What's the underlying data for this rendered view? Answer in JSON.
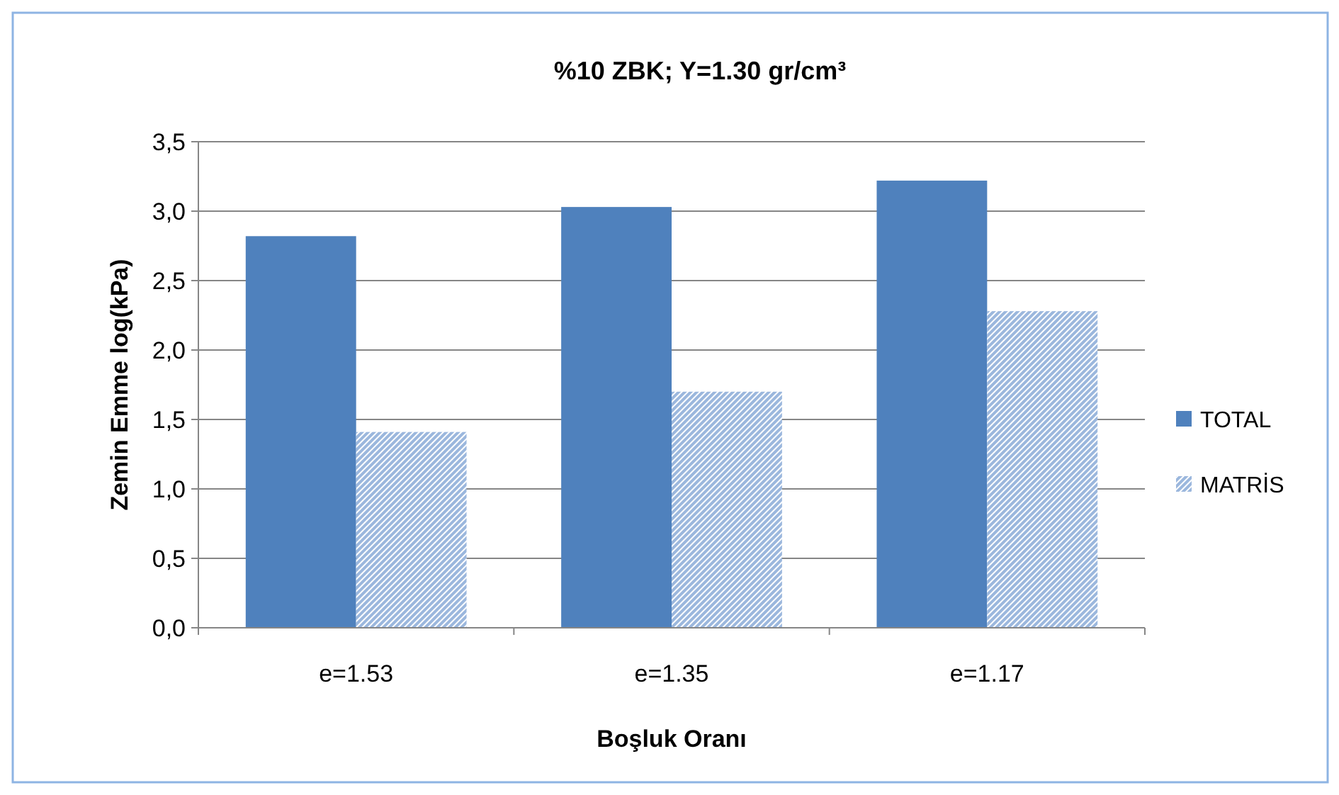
{
  "chart_data": {
    "type": "bar",
    "title": "%10 ZBK; Y=1.30 gr/cm³",
    "xlabel": "Boşluk Oranı",
    "ylabel": "Zemin Emme log(kPa)",
    "categories": [
      "e=1.53",
      "e=1.35",
      "e=1.17"
    ],
    "series": [
      {
        "name": "TOTAL",
        "color": "#4f81bd",
        "values": [
          2.82,
          3.03,
          3.22
        ]
      },
      {
        "name": "MATRİS",
        "color": "#9bb7dd",
        "values": [
          1.41,
          1.7,
          2.28
        ]
      }
    ],
    "ylim": [
      0,
      3.5
    ],
    "yticks": [
      {
        "value": 0,
        "label": "0,0"
      },
      {
        "value": 0.5,
        "label": "0,5"
      },
      {
        "value": 1,
        "label": "1,0"
      },
      {
        "value": 1.5,
        "label": "1,5"
      },
      {
        "value": 2,
        "label": "2,0"
      },
      {
        "value": 2.5,
        "label": "2,5"
      },
      {
        "value": 3,
        "label": "3,0"
      },
      {
        "value": 3.5,
        "label": "3,5"
      }
    ],
    "grid": "y",
    "legend": "right"
  }
}
